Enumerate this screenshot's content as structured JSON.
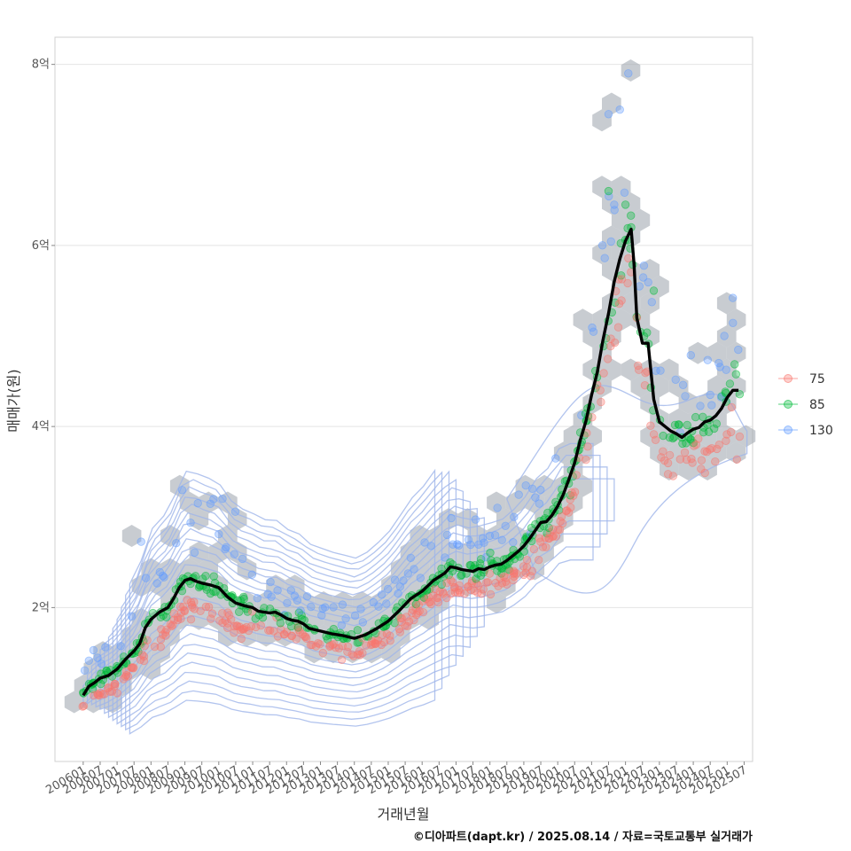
{
  "chart_data": {
    "type": "scatter",
    "title": "",
    "xlabel": "거래년월",
    "ylabel": "매매가(원)",
    "caption": "©디아파트(dapt.kr) / 2025.08.14 / 자료=국토교통부 실거래가",
    "y_unit": "억",
    "ylim": [
      0.3,
      8.3
    ],
    "xlim_months": [
      -10,
      237
    ],
    "y_ticks": [
      {
        "value": 2,
        "label": "2억"
      },
      {
        "value": 4,
        "label": "4억"
      },
      {
        "value": 6,
        "label": "6억"
      },
      {
        "value": 8,
        "label": "8억"
      }
    ],
    "x_ticks": [
      "200601",
      "200607",
      "200701",
      "200707",
      "200801",
      "200807",
      "200901",
      "200907",
      "201001",
      "201007",
      "201101",
      "201107",
      "201201",
      "201207",
      "201301",
      "201307",
      "201401",
      "201407",
      "201501",
      "201507",
      "201601",
      "201607",
      "201701",
      "201707",
      "201801",
      "201807",
      "201901",
      "201907",
      "202001",
      "202007",
      "202101",
      "202107",
      "202201",
      "202207",
      "202301",
      "202307",
      "202401",
      "202407",
      "202501",
      "202507"
    ],
    "legend": [
      {
        "name": "75",
        "color": "#F8766D"
      },
      {
        "name": "85",
        "color": "#00BA38"
      },
      {
        "name": "130",
        "color": "#619CFF"
      }
    ],
    "hexbin_color": "#9aa3ab",
    "density_color": "#9fb5ea",
    "trend_line": {
      "name": "median",
      "color": "#000000",
      "points": [
        [
          0,
          1.03
        ],
        [
          2,
          1.13
        ],
        [
          4,
          1.17
        ],
        [
          6,
          1.22
        ],
        [
          9,
          1.25
        ],
        [
          12,
          1.32
        ],
        [
          15,
          1.43
        ],
        [
          18,
          1.52
        ],
        [
          20,
          1.6
        ],
        [
          22,
          1.78
        ],
        [
          24,
          1.87
        ],
        [
          27,
          1.95
        ],
        [
          30,
          2.0
        ],
        [
          32,
          2.1
        ],
        [
          34,
          2.22
        ],
        [
          36,
          2.3
        ],
        [
          38,
          2.32
        ],
        [
          40,
          2.29
        ],
        [
          42,
          2.27
        ],
        [
          45,
          2.25
        ],
        [
          48,
          2.22
        ],
        [
          51,
          2.12
        ],
        [
          54,
          2.05
        ],
        [
          57,
          2.02
        ],
        [
          60,
          2.0
        ],
        [
          62,
          1.96
        ],
        [
          64,
          1.95
        ],
        [
          66,
          1.94
        ],
        [
          68,
          1.95
        ],
        [
          70,
          1.92
        ],
        [
          72,
          1.88
        ],
        [
          74,
          1.86
        ],
        [
          76,
          1.85
        ],
        [
          78,
          1.82
        ],
        [
          80,
          1.77
        ],
        [
          84,
          1.74
        ],
        [
          88,
          1.71
        ],
        [
          92,
          1.69
        ],
        [
          96,
          1.66
        ],
        [
          100,
          1.7
        ],
        [
          104,
          1.77
        ],
        [
          108,
          1.85
        ],
        [
          112,
          1.97
        ],
        [
          116,
          2.1
        ],
        [
          120,
          2.18
        ],
        [
          124,
          2.3
        ],
        [
          128,
          2.38
        ],
        [
          130,
          2.45
        ],
        [
          132,
          2.44
        ],
        [
          134,
          2.42
        ],
        [
          136,
          2.41
        ],
        [
          138,
          2.4
        ],
        [
          140,
          2.43
        ],
        [
          142,
          2.42
        ],
        [
          144,
          2.45
        ],
        [
          146,
          2.47
        ],
        [
          148,
          2.48
        ],
        [
          150,
          2.52
        ],
        [
          152,
          2.57
        ],
        [
          154,
          2.62
        ],
        [
          156,
          2.68
        ],
        [
          158,
          2.76
        ],
        [
          160,
          2.85
        ],
        [
          162,
          2.94
        ],
        [
          164,
          2.95
        ],
        [
          166,
          3.02
        ],
        [
          168,
          3.12
        ],
        [
          170,
          3.25
        ],
        [
          172,
          3.42
        ],
        [
          174,
          3.6
        ],
        [
          176,
          3.85
        ],
        [
          178,
          4.06
        ],
        [
          180,
          4.35
        ],
        [
          182,
          4.6
        ],
        [
          184,
          4.95
        ],
        [
          186,
          5.25
        ],
        [
          188,
          5.6
        ],
        [
          190,
          5.85
        ],
        [
          192,
          6.05
        ],
        [
          194,
          6.18
        ],
        [
          195,
          5.8
        ],
        [
          196,
          5.2
        ],
        [
          198,
          4.92
        ],
        [
          200,
          4.92
        ],
        [
          202,
          4.3
        ],
        [
          204,
          4.05
        ],
        [
          206,
          4.0
        ],
        [
          208,
          3.95
        ],
        [
          210,
          3.92
        ],
        [
          212,
          3.88
        ],
        [
          214,
          3.93
        ],
        [
          216,
          3.97
        ],
        [
          218,
          3.99
        ],
        [
          220,
          4.05
        ],
        [
          222,
          4.07
        ],
        [
          224,
          4.12
        ],
        [
          226,
          4.2
        ],
        [
          228,
          4.32
        ],
        [
          230,
          4.4
        ],
        [
          232,
          4.4
        ]
      ]
    },
    "scatter_notes": "Individual transactions by area group 75, 85, 130 (values in 억) plotted against month since 2006-01"
  }
}
